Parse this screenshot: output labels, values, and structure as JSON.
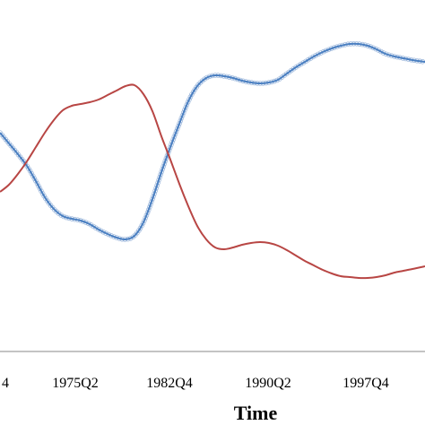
{
  "chart_data": {
    "type": "line",
    "xlabel": "Time",
    "ylabel": "",
    "title": "",
    "x_range": [
      0,
      474
    ],
    "y_range": [
      0,
      474
    ],
    "x_ticks": [
      {
        "label": "4",
        "x": 6
      },
      {
        "label": "1975Q2",
        "x": 84
      },
      {
        "label": "1982Q4",
        "x": 189
      },
      {
        "label": "1990Q2",
        "x": 299
      },
      {
        "label": "1997Q4",
        "x": 408
      }
    ],
    "series": [
      {
        "name": "",
        "color": "#4a7fc1",
        "marker": "open-circle",
        "points": [
          [
            0,
            148
          ],
          [
            10,
            160
          ],
          [
            20,
            172
          ],
          [
            30,
            185
          ],
          [
            40,
            202
          ],
          [
            50,
            220
          ],
          [
            60,
            233
          ],
          [
            70,
            241
          ],
          [
            80,
            244
          ],
          [
            90,
            246
          ],
          [
            100,
            250
          ],
          [
            110,
            256
          ],
          [
            120,
            261
          ],
          [
            130,
            265
          ],
          [
            140,
            267
          ],
          [
            150,
            263
          ],
          [
            160,
            248
          ],
          [
            170,
            222
          ],
          [
            180,
            192
          ],
          [
            190,
            164
          ],
          [
            200,
            138
          ],
          [
            210,
            113
          ],
          [
            220,
            96
          ],
          [
            230,
            87
          ],
          [
            240,
            84
          ],
          [
            250,
            85
          ],
          [
            260,
            87
          ],
          [
            270,
            90
          ],
          [
            280,
            92
          ],
          [
            290,
            93
          ],
          [
            300,
            92
          ],
          [
            310,
            89
          ],
          [
            320,
            82
          ],
          [
            330,
            75
          ],
          [
            340,
            69
          ],
          [
            350,
            63
          ],
          [
            360,
            58
          ],
          [
            370,
            54
          ],
          [
            380,
            51
          ],
          [
            390,
            49
          ],
          [
            400,
            49
          ],
          [
            410,
            51
          ],
          [
            420,
            55
          ],
          [
            430,
            60
          ],
          [
            440,
            63
          ],
          [
            450,
            65
          ],
          [
            460,
            67
          ],
          [
            474,
            69
          ]
        ]
      },
      {
        "name": "",
        "color": "#b84644",
        "marker": "none",
        "points": [
          [
            0,
            214
          ],
          [
            10,
            206
          ],
          [
            20,
            194
          ],
          [
            30,
            180
          ],
          [
            40,
            164
          ],
          [
            50,
            148
          ],
          [
            60,
            134
          ],
          [
            70,
            123
          ],
          [
            80,
            118
          ],
          [
            90,
            116
          ],
          [
            100,
            114
          ],
          [
            110,
            111
          ],
          [
            120,
            106
          ],
          [
            130,
            101
          ],
          [
            140,
            96
          ],
          [
            150,
            95
          ],
          [
            160,
            105
          ],
          [
            170,
            124
          ],
          [
            180,
            152
          ],
          [
            190,
            178
          ],
          [
            200,
            205
          ],
          [
            210,
            230
          ],
          [
            220,
            252
          ],
          [
            230,
            267
          ],
          [
            240,
            276
          ],
          [
            250,
            278
          ],
          [
            260,
            276
          ],
          [
            270,
            273
          ],
          [
            280,
            271
          ],
          [
            290,
            270
          ],
          [
            300,
            271
          ],
          [
            310,
            274
          ],
          [
            320,
            279
          ],
          [
            330,
            285
          ],
          [
            340,
            291
          ],
          [
            350,
            296
          ],
          [
            360,
            301
          ],
          [
            370,
            305
          ],
          [
            380,
            308
          ],
          [
            390,
            309
          ],
          [
            400,
            310
          ],
          [
            410,
            310
          ],
          [
            420,
            309
          ],
          [
            430,
            307
          ],
          [
            440,
            304
          ],
          [
            450,
            302
          ],
          [
            460,
            300
          ],
          [
            474,
            297
          ]
        ]
      }
    ],
    "grid": false,
    "legend": "none"
  }
}
